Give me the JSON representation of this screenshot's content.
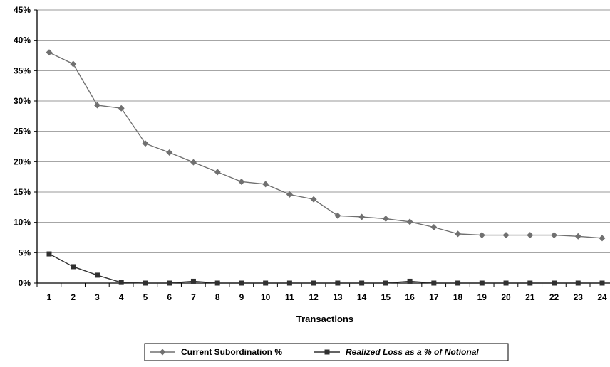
{
  "chart_data": {
    "type": "line",
    "xlabel": "Transactions",
    "ylabel": "",
    "ylim": [
      0,
      45
    ],
    "y_tick_values": [
      0,
      5,
      10,
      15,
      20,
      25,
      30,
      35,
      40,
      45
    ],
    "y_tick_labels": [
      "0%",
      "5%",
      "10%",
      "15%",
      "20%",
      "25%",
      "30%",
      "35%",
      "40%",
      "45%"
    ],
    "x": [
      "1",
      "2",
      "3",
      "4",
      "5",
      "6",
      "7",
      "8",
      "9",
      "10",
      "11",
      "12",
      "13",
      "14",
      "15",
      "16",
      "17",
      "18",
      "19",
      "20",
      "21",
      "22",
      "23",
      "24"
    ],
    "grid": true,
    "legend_position": "bottom",
    "series": [
      {
        "name": "Current Subordination %",
        "marker": "diamond",
        "color": "#707070",
        "values": [
          38.0,
          36.1,
          29.3,
          28.8,
          23.0,
          21.5,
          19.9,
          18.3,
          16.7,
          16.3,
          14.6,
          13.8,
          11.1,
          10.9,
          10.6,
          10.1,
          9.2,
          8.1,
          7.9,
          7.9,
          7.9,
          7.9,
          7.7,
          7.4
        ]
      },
      {
        "name": "Realized Loss as a % of Notional",
        "marker": "square",
        "color": "#303030",
        "values": [
          4.8,
          2.7,
          1.3,
          0.1,
          0.0,
          0.0,
          0.3,
          0.0,
          0.0,
          0.0,
          0.0,
          0.0,
          0.0,
          0.0,
          0.0,
          0.3,
          0.0,
          0.0,
          0.0,
          0.0,
          0.0,
          0.0,
          0.0,
          0.0
        ]
      }
    ]
  }
}
